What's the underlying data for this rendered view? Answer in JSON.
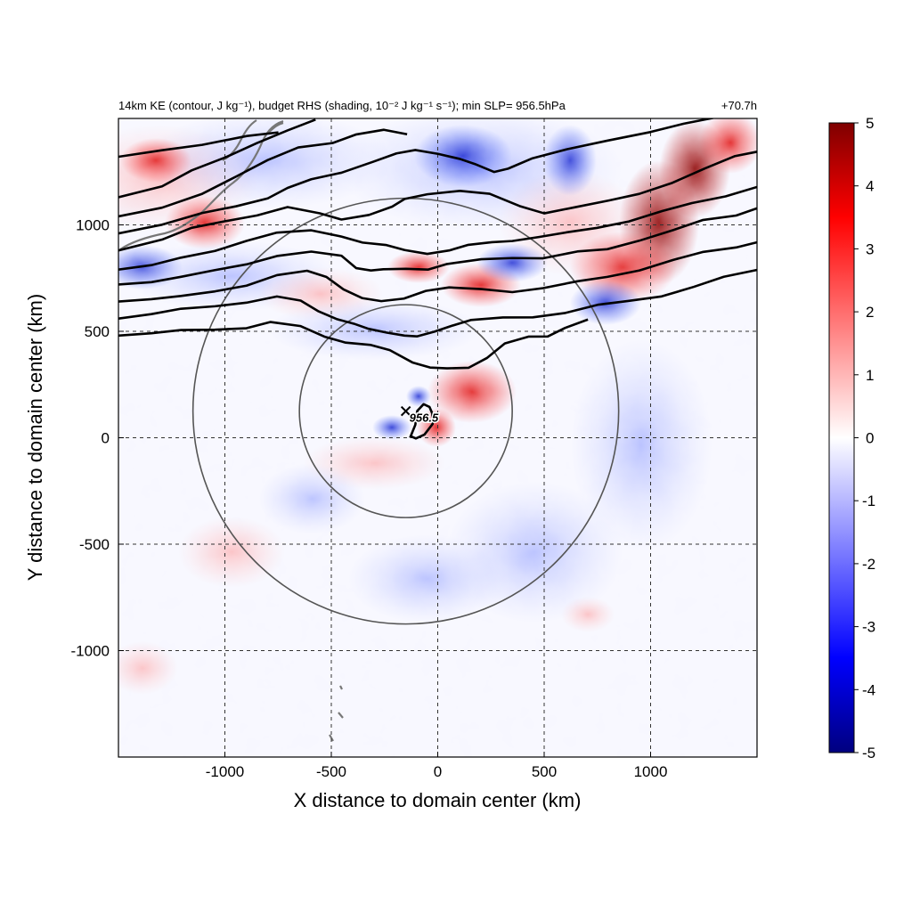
{
  "chart_data": {
    "type": "heatmap",
    "title": "14km KE (contour, J kg⁻¹), budget RHS (shading, 10⁻² J kg⁻¹ s⁻¹); min SLP= 956.5hPa",
    "time_label": "+70.7h",
    "xlabel": "X distance to domain center (km)",
    "ylabel": "Y distance to domain center (km)",
    "xlim": [
      -1500,
      1500
    ],
    "ylim": [
      -1500,
      1500
    ],
    "xticks": [
      -1000,
      -500,
      0,
      500,
      1000
    ],
    "xtick_labels": [
      "-1000",
      "-500",
      "0",
      "500",
      "1000"
    ],
    "yticks": [
      1000,
      500,
      0,
      -500,
      -1000
    ],
    "ytick_labels": [
      "1000",
      "500",
      "0",
      "-500",
      "-1000"
    ],
    "grid": true,
    "colorbar": {
      "ticks": [
        5,
        4,
        3,
        2,
        1,
        0,
        -1,
        -2,
        -3,
        -4,
        -5
      ],
      "labels": [
        "5",
        "4",
        "3",
        "2",
        "1",
        "0",
        "-1",
        "-2",
        "-3",
        "-4",
        "-5"
      ],
      "range": [
        -5,
        5
      ],
      "colormap": [
        "#00007f",
        "#0000ff",
        "#ffffff",
        "#ff0000",
        "#7f0000"
      ]
    },
    "storm_center": {
      "x": -150,
      "y": 125
    },
    "min_slp_label": "956.5",
    "range_rings_km": [
      500,
      1000
    ],
    "ke_contours": [
      {
        "label": "",
        "points": [
          [
            -1500,
            1320
          ],
          [
            -1300,
            1350
          ],
          [
            -1100,
            1370
          ],
          [
            -900,
            1420
          ],
          [
            -750,
            1440
          ]
        ]
      },
      {
        "label": "",
        "points": [
          [
            -1500,
            1130
          ],
          [
            -1300,
            1180
          ],
          [
            -1150,
            1250
          ],
          [
            -1000,
            1320
          ],
          [
            -850,
            1390
          ],
          [
            -700,
            1440
          ],
          [
            -580,
            1490
          ]
        ]
      },
      {
        "label": "",
        "points": [
          [
            -1500,
            1040
          ],
          [
            -1300,
            1080
          ],
          [
            -1100,
            1140
          ],
          [
            -950,
            1230
          ],
          [
            -800,
            1310
          ],
          [
            -650,
            1360
          ],
          [
            -500,
            1380
          ],
          [
            -380,
            1430
          ],
          [
            -250,
            1450
          ],
          [
            -150,
            1420
          ]
        ]
      },
      {
        "label": "",
        "points": [
          [
            -1500,
            960
          ],
          [
            -1300,
            1000
          ],
          [
            -1100,
            1050
          ],
          [
            -950,
            1090
          ],
          [
            -800,
            1130
          ],
          [
            -700,
            1170
          ],
          [
            -600,
            1210
          ],
          [
            -450,
            1250
          ],
          [
            -300,
            1300
          ],
          [
            -200,
            1330
          ],
          [
            -100,
            1350
          ],
          [
            0,
            1340
          ],
          [
            100,
            1310
          ],
          [
            180,
            1280
          ],
          [
            260,
            1250
          ],
          [
            330,
            1270
          ],
          [
            450,
            1310
          ],
          [
            600,
            1350
          ],
          [
            800,
            1400
          ],
          [
            1000,
            1440
          ],
          [
            1150,
            1470
          ],
          [
            1300,
            1500
          ]
        ]
      },
      {
        "label": "",
        "points": [
          [
            -1500,
            880
          ],
          [
            -1300,
            930
          ],
          [
            -1150,
            980
          ],
          [
            -1000,
            1020
          ],
          [
            -850,
            1050
          ],
          [
            -700,
            1080
          ],
          [
            -560,
            1050
          ],
          [
            -450,
            1030
          ],
          [
            -320,
            1050
          ],
          [
            -220,
            1080
          ],
          [
            -150,
            1120
          ],
          [
            -50,
            1150
          ],
          [
            100,
            1160
          ],
          [
            250,
            1140
          ],
          [
            380,
            1090
          ],
          [
            500,
            1060
          ],
          [
            650,
            1080
          ],
          [
            800,
            1110
          ],
          [
            950,
            1150
          ],
          [
            1100,
            1200
          ],
          [
            1250,
            1260
          ],
          [
            1400,
            1320
          ],
          [
            1500,
            1350
          ]
        ]
      },
      {
        "label": "",
        "points": [
          [
            -1500,
            790
          ],
          [
            -1350,
            810
          ],
          [
            -1200,
            840
          ],
          [
            -1050,
            880
          ],
          [
            -900,
            930
          ],
          [
            -750,
            960
          ],
          [
            -600,
            970
          ],
          [
            -450,
            950
          ],
          [
            -350,
            920
          ],
          [
            -250,
            900
          ],
          [
            -150,
            880
          ],
          [
            -50,
            870
          ],
          [
            50,
            880
          ],
          [
            150,
            900
          ],
          [
            250,
            920
          ],
          [
            350,
            930
          ],
          [
            480,
            940
          ],
          [
            600,
            960
          ],
          [
            750,
            990
          ],
          [
            900,
            1020
          ],
          [
            1050,
            1060
          ],
          [
            1200,
            1100
          ],
          [
            1350,
            1140
          ],
          [
            1500,
            1180
          ]
        ]
      },
      {
        "label": "",
        "points": [
          [
            -1500,
            720
          ],
          [
            -1350,
            730
          ],
          [
            -1200,
            750
          ],
          [
            -1050,
            790
          ],
          [
            -900,
            820
          ],
          [
            -750,
            850
          ],
          [
            -600,
            870
          ],
          [
            -450,
            860
          ],
          [
            -380,
            800
          ],
          [
            -320,
            780
          ],
          [
            -250,
            790
          ],
          [
            -150,
            800
          ],
          [
            -50,
            790
          ],
          [
            50,
            810
          ],
          [
            200,
            840
          ],
          [
            350,
            850
          ],
          [
            500,
            840
          ],
          [
            650,
            870
          ],
          [
            800,
            890
          ],
          [
            950,
            930
          ],
          [
            1100,
            970
          ],
          [
            1250,
            1020
          ],
          [
            1400,
            1050
          ],
          [
            1500,
            1080
          ]
        ]
      },
      {
        "label": "",
        "points": [
          [
            -1500,
            640
          ],
          [
            -1350,
            650
          ],
          [
            -1200,
            660
          ],
          [
            -1050,
            690
          ],
          [
            -900,
            720
          ],
          [
            -750,
            760
          ],
          [
            -620,
            780
          ],
          [
            -520,
            760
          ],
          [
            -440,
            700
          ],
          [
            -360,
            650
          ],
          [
            -260,
            640
          ],
          [
            -160,
            660
          ],
          [
            -60,
            690
          ],
          [
            60,
            700
          ],
          [
            200,
            700
          ],
          [
            350,
            690
          ],
          [
            500,
            700
          ],
          [
            650,
            730
          ],
          [
            800,
            760
          ],
          [
            950,
            790
          ],
          [
            1100,
            830
          ],
          [
            1250,
            870
          ],
          [
            1400,
            900
          ],
          [
            1500,
            920
          ]
        ]
      },
      {
        "label": "",
        "points": [
          [
            -1500,
            560
          ],
          [
            -1350,
            580
          ],
          [
            -1200,
            600
          ],
          [
            -1050,
            620
          ],
          [
            -900,
            640
          ],
          [
            -750,
            660
          ],
          [
            -650,
            640
          ],
          [
            -560,
            600
          ],
          [
            -470,
            560
          ],
          [
            -400,
            530
          ],
          [
            -320,
            510
          ],
          [
            -240,
            500
          ],
          [
            -160,
            480
          ],
          [
            -90,
            470
          ],
          [
            -20,
            500
          ],
          [
            60,
            530
          ],
          [
            160,
            550
          ],
          [
            300,
            560
          ],
          [
            450,
            570
          ],
          [
            600,
            590
          ],
          [
            750,
            620
          ],
          [
            900,
            640
          ],
          [
            1050,
            670
          ],
          [
            1200,
            710
          ],
          [
            1350,
            750
          ],
          [
            1500,
            790
          ]
        ]
      },
      {
        "label": "",
        "points": [
          [
            -1500,
            480
          ],
          [
            -1350,
            490
          ],
          [
            -1200,
            500
          ],
          [
            -1050,
            510
          ],
          [
            -900,
            520
          ],
          [
            -780,
            540
          ],
          [
            -650,
            520
          ],
          [
            -530,
            480
          ],
          [
            -430,
            450
          ],
          [
            -320,
            430
          ],
          [
            -220,
            410
          ],
          [
            -120,
            360
          ],
          [
            -40,
            330
          ],
          [
            50,
            320
          ],
          [
            140,
            330
          ],
          [
            230,
            380
          ],
          [
            320,
            440
          ],
          [
            420,
            470
          ],
          [
            520,
            480
          ],
          [
            600,
            520
          ],
          [
            700,
            550
          ]
        ]
      },
      {
        "label": "",
        "points": [
          [
            -130,
            0
          ],
          [
            -110,
            60
          ],
          [
            -90,
            120
          ],
          [
            -70,
            160
          ],
          [
            -40,
            150
          ],
          [
            -20,
            110
          ],
          [
            -30,
            60
          ],
          [
            -60,
            20
          ],
          [
            -100,
            0
          ],
          [
            -130,
            0
          ]
        ]
      }
    ]
  }
}
